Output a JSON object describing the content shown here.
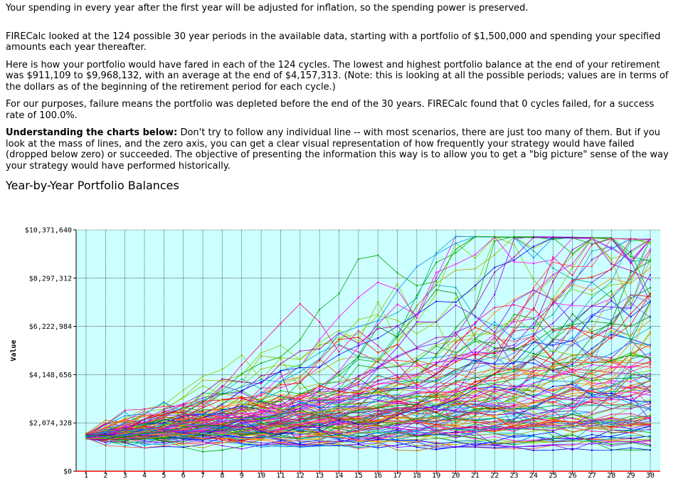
{
  "text": {
    "intro": "Your spending in every year after the first year will be adjusted for inflation, so the spending power is preserved.",
    "cycles": "FIRECalc looked at the 124 possible 30 year periods in the available data, starting with a portfolio of $1,500,000 and spending your specified amounts each year thereafter.",
    "fared": "Here is how your portfolio would have fared in each of the 124 cycles. The lowest and highest portfolio balance at the end of your retirement was $911,109 to $9,968,132, with an average at the end of $4,157,313. (Note: this is looking at all the possible periods; values are in terms of the dollars as of the beginning of the retirement period for each cycle.)",
    "failure": "For our purposes, failure means the portfolio was depleted before the end of the 30 years. FIRECalc found that 0 cycles failed, for a success rate of 100.0%.",
    "understanding_bold": "Understanding the charts below:",
    "understanding_rest": " Don't try to follow any individual line -- with most scenarios, there are just too many of them. But if you look at the mass of lines, and the zero axis, you can get a clear visual representation of how frequently your strategy would have failed (dropped below zero) or succeeded. The objective of presenting the information this way is to allow you to get a \"big picture\" sense of the way your strategy would have performed historically.",
    "section_title": "Year-by-Year Portfolio Balances"
  },
  "chart_data": {
    "type": "line",
    "ylabel": "Value",
    "xlabel": "",
    "x": [
      1,
      2,
      3,
      4,
      5,
      6,
      7,
      8,
      9,
      10,
      11,
      12,
      13,
      14,
      15,
      16,
      17,
      18,
      19,
      20,
      21,
      22,
      23,
      24,
      25,
      26,
      27,
      28,
      29,
      30
    ],
    "ylim": [
      0,
      10371640
    ],
    "ytick_values": [
      0,
      2074328,
      4148656,
      6222984,
      8297312,
      10371640
    ],
    "ytick_labels": [
      "$0",
      "$2,074,328",
      "$4,148,656",
      "$6,222,984",
      "$8,297,312",
      "$10,371,640"
    ],
    "grid": true,
    "plot_background": "#ccffff",
    "zero_axis_color": "#ff0000",
    "num_series": 124,
    "start_value": 1500000,
    "end_min": 911109,
    "end_max": 9968132,
    "end_avg": 4157313,
    "series_colors": [
      "#ff0000",
      "#00aa00",
      "#0000ff",
      "#ff00ff",
      "#ff8800",
      "#8800ff",
      "#00aaaa",
      "#aa00aa",
      "#0088ff",
      "#88cc00",
      "#ff0088",
      "#008800",
      "#cc6600",
      "#6666ff",
      "#aaaa00",
      "#ff4444"
    ]
  }
}
